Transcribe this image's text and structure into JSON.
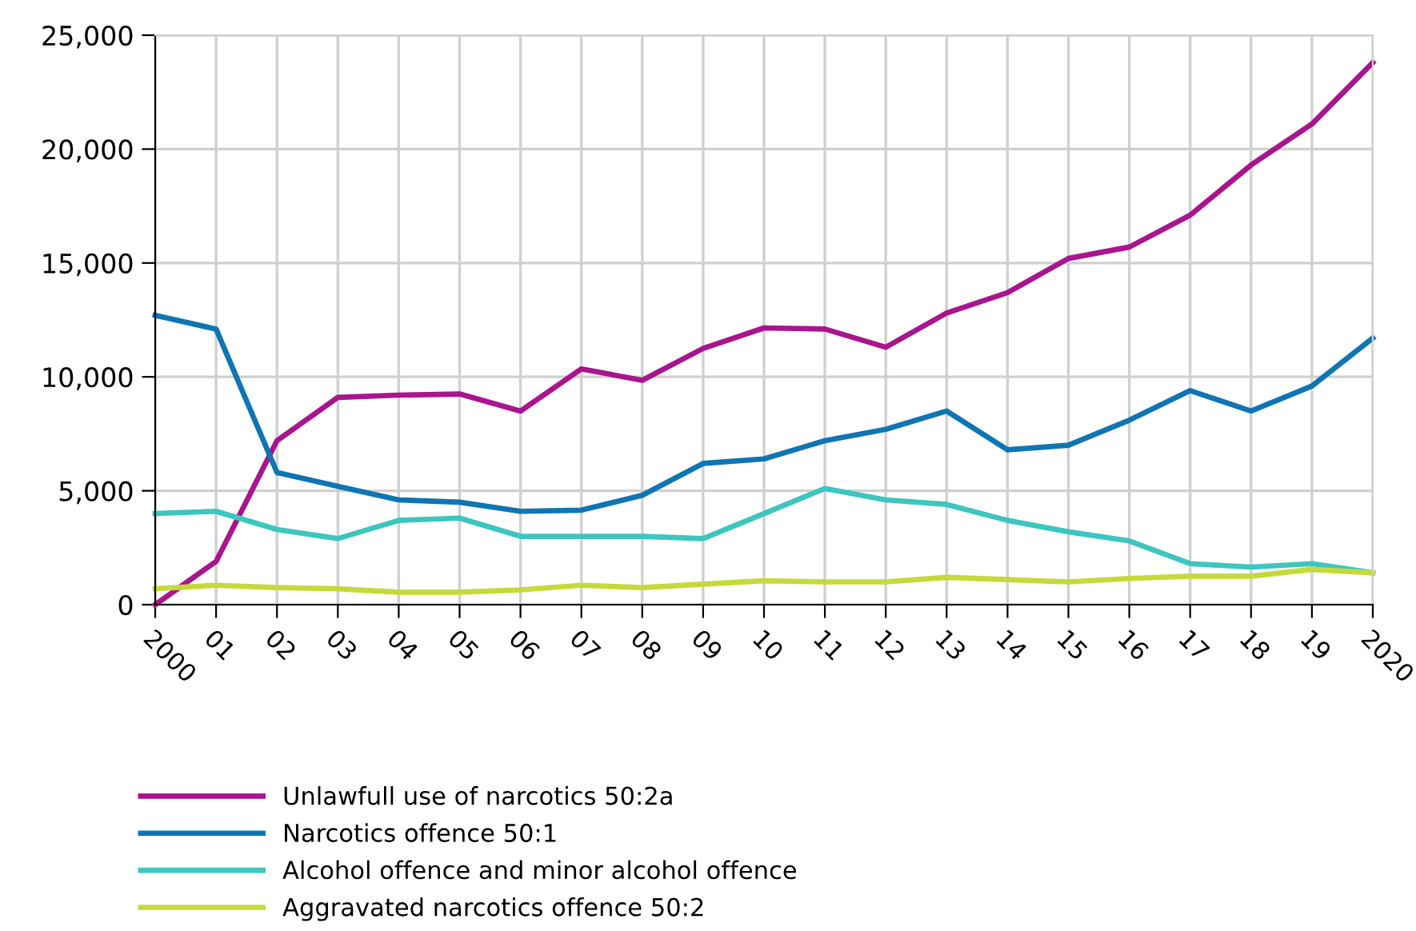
{
  "chart_data": {
    "type": "line",
    "categories": [
      "2000",
      "01",
      "02",
      "03",
      "04",
      "05",
      "06",
      "07",
      "08",
      "09",
      "10",
      "11",
      "12",
      "13",
      "14",
      "15",
      "16",
      "17",
      "18",
      "19",
      "2020"
    ],
    "series": [
      {
        "name": "Unlawfull use of narcotics 50:2a",
        "color": "#a8158e",
        "values": [
          0,
          1900,
          7200,
          9100,
          9200,
          9250,
          8500,
          10350,
          9850,
          11250,
          12150,
          12100,
          11300,
          12800,
          13700,
          15200,
          15700,
          17100,
          19300,
          21100,
          23800
        ]
      },
      {
        "name": "Narcotics offence 50:1",
        "color": "#0f75b3",
        "values": [
          12700,
          12100,
          5800,
          5200,
          4600,
          4500,
          4100,
          4150,
          4800,
          6200,
          6400,
          7200,
          7700,
          8500,
          6800,
          7000,
          8100,
          9400,
          8500,
          9600,
          11700
        ]
      },
      {
        "name": "Alcohol offence and minor alcohol offence",
        "color": "#3cc6bf",
        "values": [
          4000,
          4100,
          3300,
          2900,
          3700,
          3800,
          3000,
          3000,
          3000,
          2900,
          4000,
          5100,
          4600,
          4400,
          3700,
          3200,
          2800,
          1800,
          1650,
          1800,
          1400
        ]
      },
      {
        "name": "Aggravated narcotics offence 50:2",
        "color": "#c5da3a",
        "values": [
          700,
          850,
          750,
          700,
          550,
          550,
          650,
          850,
          750,
          900,
          1050,
          1000,
          1000,
          1200,
          1100,
          1000,
          1150,
          1250,
          1250,
          1550,
          1400
        ]
      }
    ],
    "ylim": [
      0,
      25000
    ],
    "yticks": [
      0,
      {
        "value": 5000,
        "label": "5,000"
      },
      {
        "value": 10000,
        "label": "10,000"
      },
      {
        "value": 15000,
        "label": "15,000"
      },
      {
        "value": 20000,
        "label": "20,000"
      },
      {
        "value": 25000,
        "label": "25,000"
      }
    ],
    "grid": true,
    "legend": "bottom",
    "marker": "none",
    "line_style": "solid"
  }
}
